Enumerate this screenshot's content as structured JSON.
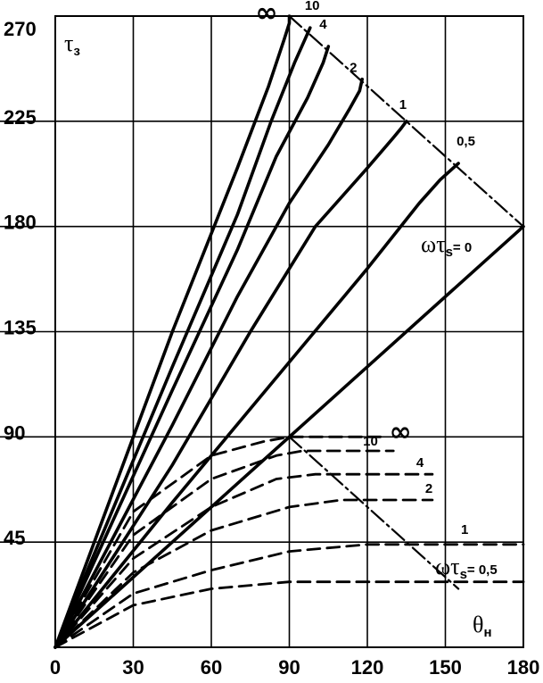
{
  "chart_data": {
    "type": "line",
    "title": "",
    "xlabel": "θн",
    "ylabel": "τз",
    "xlim": [
      0,
      180
    ],
    "ylim": [
      0,
      270
    ],
    "x_ticks": [
      "0",
      "30",
      "60",
      "90",
      "120",
      "150",
      "180"
    ],
    "y_ticks": [
      "45",
      "90",
      "135",
      "180",
      "225",
      "270"
    ],
    "grid": true,
    "y_label_text": "τ",
    "y_label_sub": "з",
    "x_label_text": "θ",
    "x_label_sub": "н",
    "param_label_upper": "ωτ",
    "param_label_upper_sub": "s",
    "param_label_upper_value": "= 0",
    "param_label_lower": "ωτ",
    "param_label_lower_sub": "s",
    "param_label_lower_value": "= 0,5",
    "solid_series": [
      {
        "label": "0",
        "x": [
          0,
          180
        ],
        "y": [
          0,
          180
        ]
      },
      {
        "label": "0,5",
        "x": [
          0,
          45,
          90,
          120,
          140,
          148,
          155
        ],
        "y": [
          0,
          62,
          122,
          162,
          190,
          200,
          207
        ]
      },
      {
        "label": "1",
        "x": [
          0,
          45,
          75,
          100,
          120,
          130,
          133,
          135
        ],
        "y": [
          0,
          78,
          135,
          180,
          205,
          218,
          222,
          225
        ]
      },
      {
        "label": "2",
        "x": [
          0,
          45,
          70,
          90,
          105,
          113,
          117,
          118
        ],
        "y": [
          0,
          95,
          150,
          190,
          215,
          230,
          238,
          243
        ]
      },
      {
        "label": "4",
        "x": [
          0,
          45,
          70,
          85,
          97,
          103,
          105
        ],
        "y": [
          0,
          110,
          170,
          210,
          235,
          250,
          257
        ]
      },
      {
        "label": "10",
        "x": [
          0,
          45,
          70,
          83,
          92,
          96,
          98
        ],
        "y": [
          0,
          120,
          185,
          225,
          250,
          260,
          265
        ]
      },
      {
        "label": "∞",
        "x": [
          0,
          45,
          70,
          82,
          88,
          90,
          90
        ],
        "y": [
          0,
          135,
          205,
          240,
          260,
          267,
          270
        ]
      }
    ],
    "dashed_series": [
      {
        "label": "0",
        "x": [
          0,
          90
        ],
        "y": [
          0,
          90
        ]
      },
      {
        "label": "0,5",
        "x": [
          0,
          30,
          60,
          90,
          120,
          150,
          180
        ],
        "y": [
          0,
          18,
          25,
          28,
          28,
          28,
          28
        ]
      },
      {
        "label": "1",
        "x": [
          0,
          30,
          60,
          90,
          120,
          150,
          180
        ],
        "y": [
          0,
          23,
          33,
          41,
          44,
          44,
          44
        ]
      },
      {
        "label": "2",
        "x": [
          0,
          30,
          60,
          90,
          110,
          145
        ],
        "y": [
          0,
          32,
          50,
          60,
          63,
          63
        ]
      },
      {
        "label": "4",
        "x": [
          0,
          30,
          60,
          85,
          100,
          145
        ],
        "y": [
          0,
          38,
          60,
          72,
          74,
          74
        ]
      },
      {
        "label": "10",
        "x": [
          0,
          30,
          60,
          85,
          95,
          130
        ],
        "y": [
          0,
          48,
          72,
          82,
          84,
          84
        ]
      },
      {
        "label": "∞",
        "x": [
          0,
          30,
          60,
          80,
          90,
          90,
          125
        ],
        "y": [
          0,
          58,
          82,
          88,
          90,
          90,
          90
        ]
      }
    ],
    "boundary_lines": [
      {
        "x": [
          90,
          180
        ],
        "y": [
          270,
          180
        ]
      },
      {
        "x": [
          90,
          155
        ],
        "y": [
          90,
          25
        ]
      }
    ]
  },
  "colors": {
    "ink": "#000000",
    "background": "#ffffff"
  }
}
